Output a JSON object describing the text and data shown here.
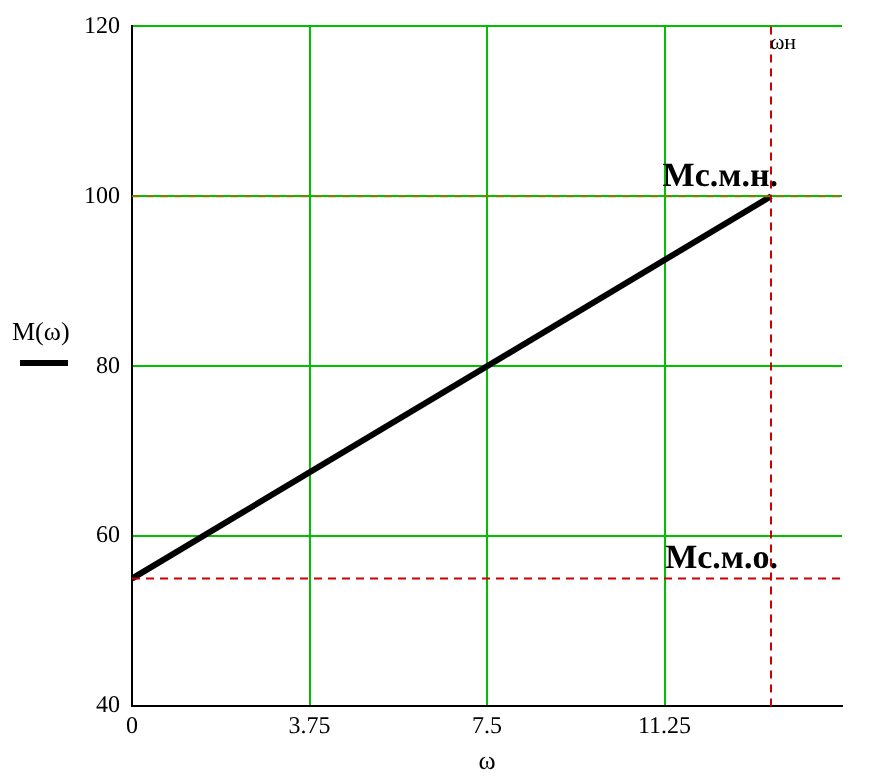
{
  "chart_data": {
    "type": "line",
    "xlabel": "ω",
    "ylabel": "M(ω)",
    "x": [
      0,
      13.5
    ],
    "series": [
      {
        "color": "#000000",
        "values": [
          55,
          100
        ]
      }
    ],
    "xlim": [
      0,
      15
    ],
    "xticks": [
      0,
      3.75,
      7.5,
      11.25
    ],
    "ylim": [
      40,
      120
    ],
    "yticks": [
      40,
      60,
      80,
      100,
      120
    ],
    "grid": true,
    "legend": false,
    "marker": "none",
    "line_style": "solid",
    "ref_lines": [
      {
        "axis": "y",
        "value": 100,
        "label": "Мс.м.н.",
        "color": "#808000",
        "line_style": "dashed"
      },
      {
        "axis": "y",
        "value": 55,
        "label": "Мс.м.о.",
        "color": "#cc0000",
        "line_style": "dashed"
      },
      {
        "axis": "x",
        "value": 13.5,
        "label": "ωн",
        "color": "#cc0000",
        "line_style": "dashed"
      }
    ]
  }
}
